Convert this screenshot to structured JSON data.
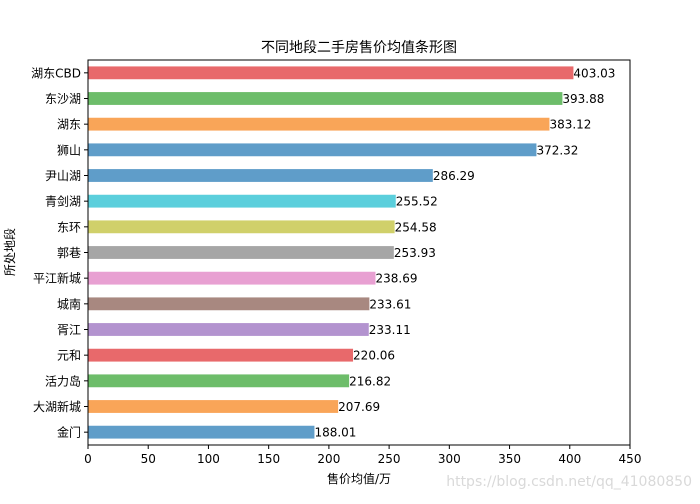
{
  "chart_data": {
    "type": "bar",
    "orientation": "horizontal",
    "title": "不同地段二手房售价均值条形图",
    "xlabel": "售价均值/万",
    "ylabel": "所处地段",
    "xlim": [
      0,
      450
    ],
    "xticks": [
      0,
      50,
      100,
      150,
      200,
      250,
      300,
      350,
      400,
      450
    ],
    "grid": false,
    "categories": [
      "湖东CBD",
      "东沙湖",
      "湖东",
      "狮山",
      "尹山湖",
      "青剑湖",
      "东环",
      "郭巷",
      "平江新城",
      "城南",
      "胥江",
      "元和",
      "活力岛",
      "大湖新城",
      "金门"
    ],
    "values": [
      403.03,
      393.88,
      383.12,
      372.32,
      286.29,
      255.52,
      254.58,
      253.93,
      238.69,
      233.61,
      233.11,
      220.06,
      216.82,
      207.69,
      188.01
    ],
    "value_labels": [
      "403.03",
      "393.88",
      "383.12",
      "372.32",
      "286.29",
      "255.52",
      "254.58",
      "253.93",
      "238.69",
      "233.61",
      "233.11",
      "220.06",
      "216.82",
      "207.69",
      "188.01"
    ],
    "colors": [
      "#e8696b",
      "#6dbd6a",
      "#f9a558",
      "#5f9dc9",
      "#5f9dc9",
      "#5bcfdc",
      "#d0d06a",
      "#a6a6a6",
      "#e8a0d2",
      "#a88880",
      "#b393cf",
      "#e8696b",
      "#6dbd6a",
      "#f9a558",
      "#5f9dc9"
    ]
  },
  "watermark": "https://blog.csdn.net/qq_41080850"
}
